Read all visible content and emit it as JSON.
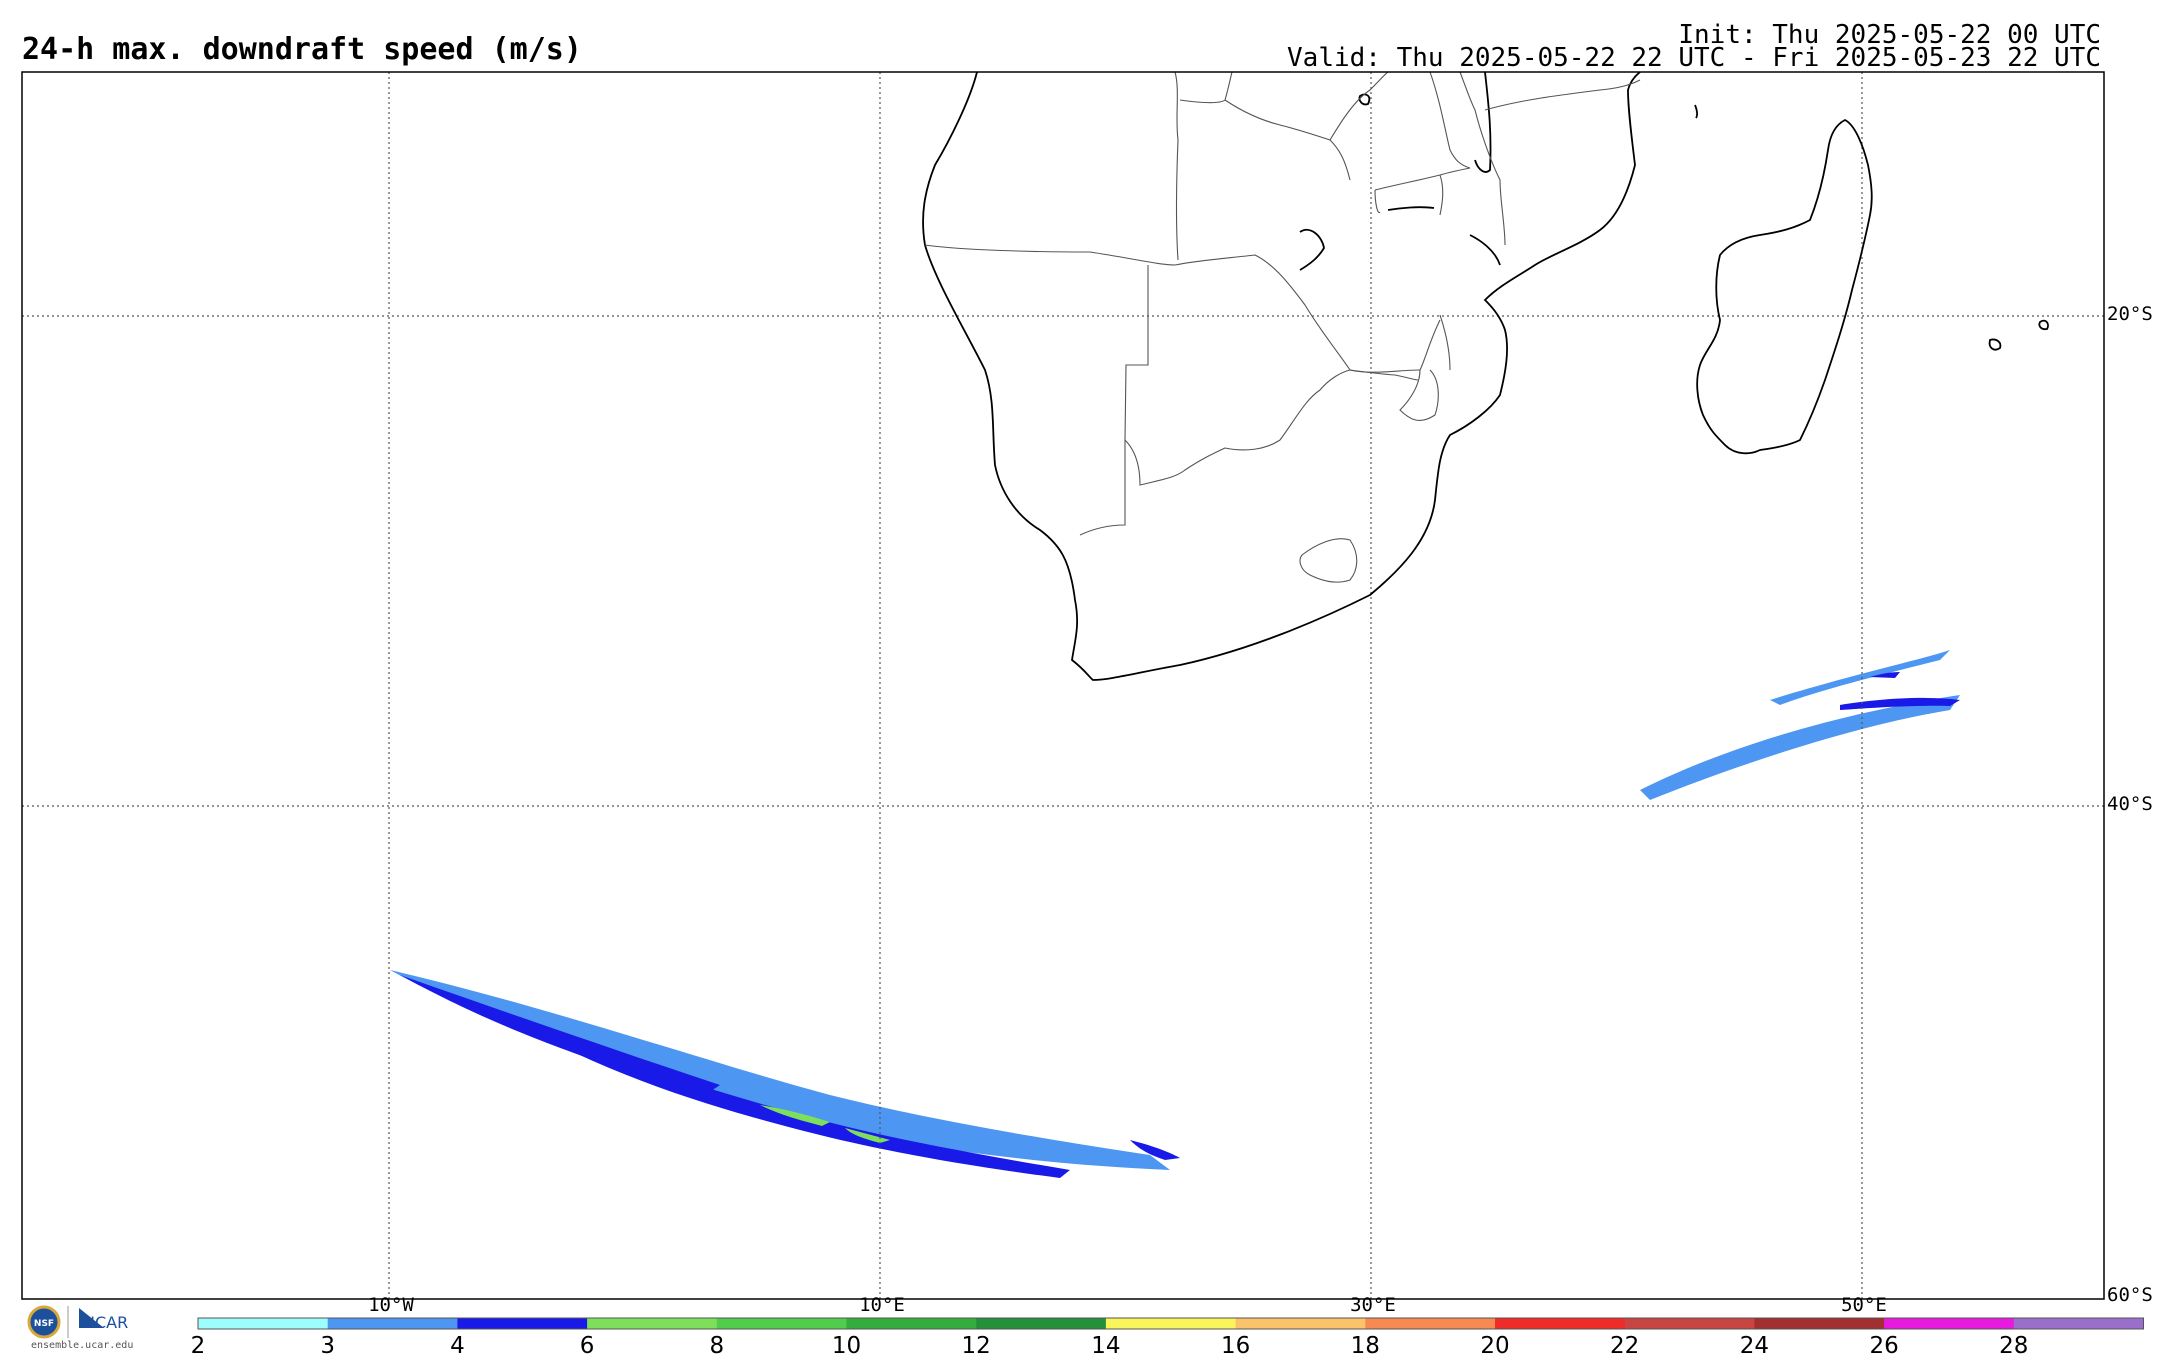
{
  "header": {
    "title": "24-h max. downdraft speed (m/s)",
    "init": "Init: Thu 2025-05-22 00 UTC",
    "valid": "Valid: Thu 2025-05-22 22 UTC - Fri 2025-05-23 22 UTC"
  },
  "map": {
    "lat_labels": [
      "20°S",
      "40°S",
      "60°S"
    ],
    "lon_labels": [
      "10°W",
      "10°E",
      "30°E",
      "50°E"
    ]
  },
  "colorbar": {
    "labels": [
      "2",
      "3",
      "4",
      "6",
      "8",
      "10",
      "12",
      "14",
      "16",
      "18",
      "20",
      "22",
      "24",
      "26",
      "28"
    ],
    "colors": [
      "#9efdfd",
      "#4d97f2",
      "#1a1ae8",
      "#7ee05a",
      "#52cc4b",
      "#35ad3c",
      "#25903a",
      "#fbf55c",
      "#fbc46a",
      "#f68a52",
      "#ef2c28",
      "#c84542",
      "#a33030",
      "#e81ae0",
      "#9a6fcb"
    ]
  },
  "logos": {
    "nsf_text": "NSF",
    "ncar_text": "NCAR",
    "site": "ensemble.ucar.edu"
  },
  "icons": {
    "nsf": "nsf-seal-icon",
    "ncar": "ncar-logo-icon"
  }
}
